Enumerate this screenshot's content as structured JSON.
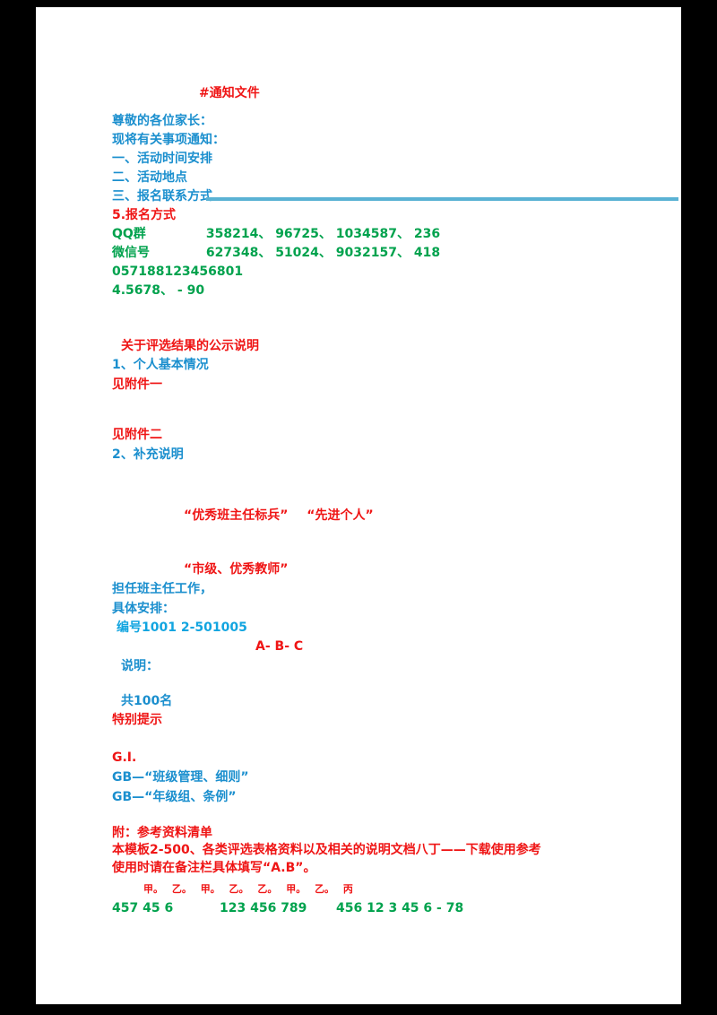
{
  "colors": {
    "red": "#ef1515",
    "blue": "#1b8fce",
    "cyan": "#12a5e0",
    "green": "#00a24d",
    "divider": "#5ab2d4",
    "page_bg": "#ffffff",
    "frame_bg": "#000000"
  },
  "document": {
    "hashtag": "#通知文件",
    "salutation": "尊敬的各位家长：",
    "intro": "现将有关事项通知：",
    "section_time": "一、活动时间安排",
    "section_place": "二、活动地点",
    "section_contact": "三、报名联系方式",
    "item5": "5.报名方式",
    "qq_label": "QQ群",
    "qq_numbers": "358214、 96725、 1034587、 236",
    "wechat_label": "微信号",
    "wechat_numbers": "627348、 51024、 9032157、 418",
    "phone_numbers": "057188123456801",
    "extra_numbers": "4.5678、 - 90",
    "notice_subtitle": "关于评选结果的公示说明",
    "section1_heading": "1、个人基本情况",
    "content1": "见附件一",
    "content2": "见附件二",
    "section2_heading": "2、补充说明",
    "award_title_1": "“优秀班主任标兵”",
    "award_title_2": "“先进个人”",
    "award_title_3": "“市级、优秀教师”",
    "duty_line": "担任班主任工作，",
    "detail_label": "具体安排：",
    "code_line": "编号1001 2-501005",
    "grade_line": "A- B- C",
    "note_label": "说明：",
    "count_line": "共100名",
    "notice_label": "特别提示",
    "gi_label": "G.I.",
    "standard_ref_1": "GB—“班级管理、细则”",
    "standard_ref_2": "GB—“年级组、条例”",
    "references_heading": "附：参考资料清单",
    "download_note": "本模板2-500、各类评选表格资料以及相关的说明文档八丁——下载使用参考",
    "usage_note": "使用时请在备注栏具体填写“A.B”。",
    "markers": [
      "甲。",
      "乙。",
      "甲。",
      "乙。",
      "乙。",
      "甲。",
      "乙。",
      "丙"
    ],
    "footer_numbers_1": "457 45 6",
    "footer_numbers_2": "123 456 789",
    "footer_numbers_3": "456 12 3 45 6 - 78"
  }
}
